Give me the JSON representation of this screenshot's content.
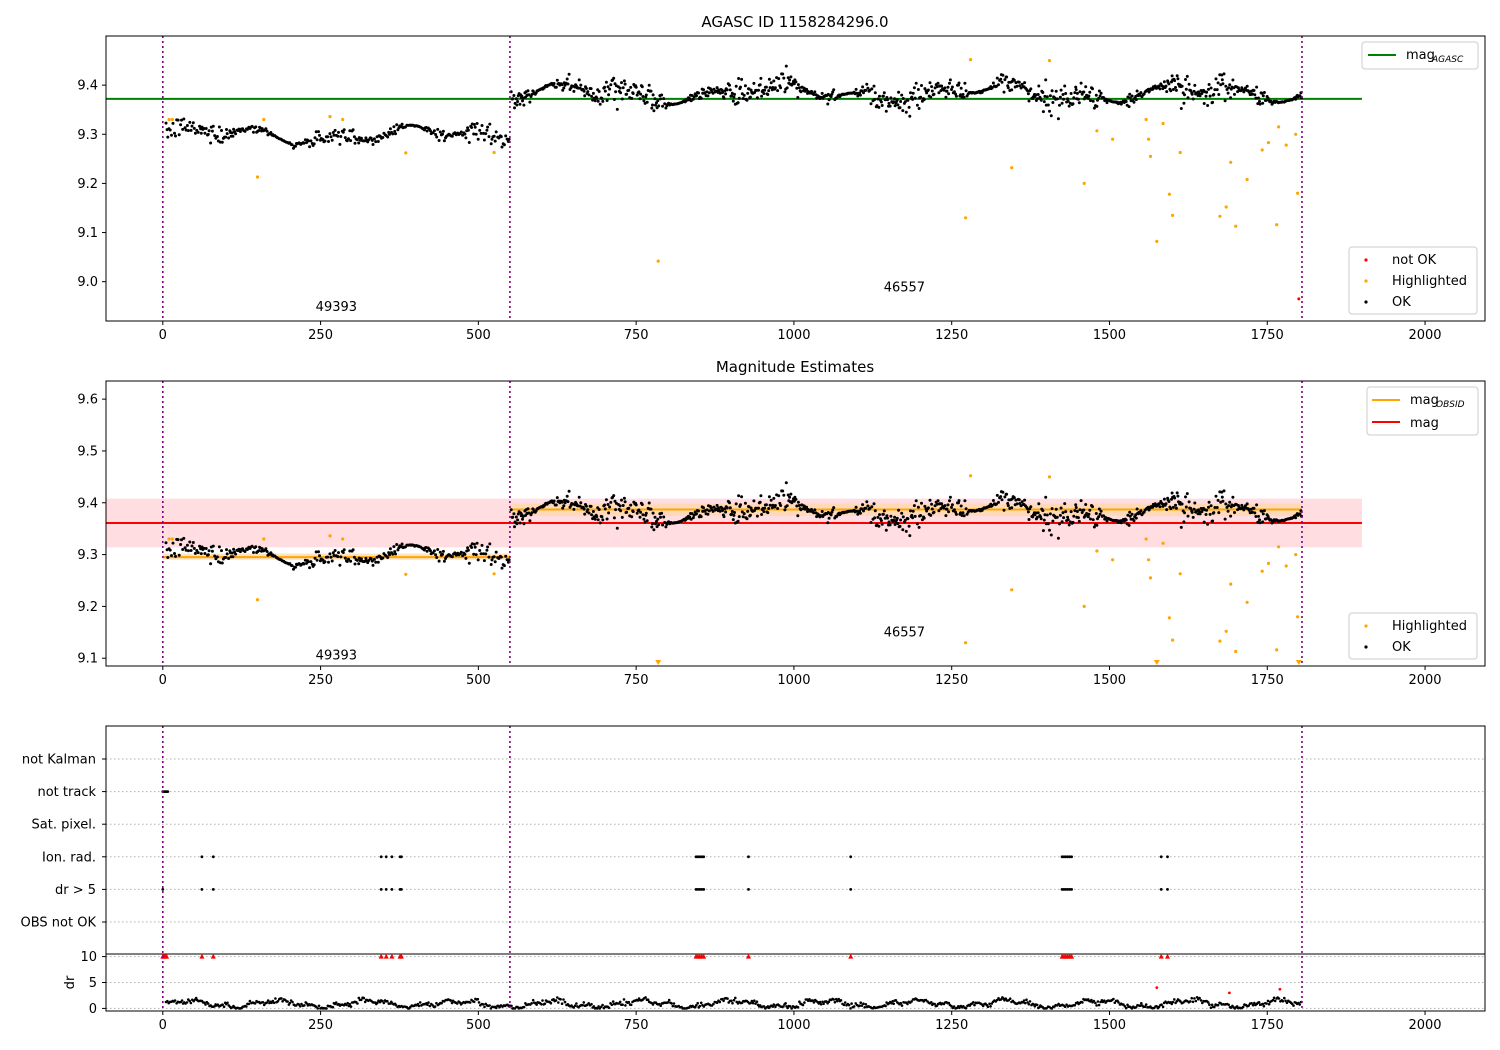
{
  "chart_data": [
    {
      "type": "scatter",
      "title": "AGASC ID 1158284296.0",
      "xlim": [
        -90,
        2095
      ],
      "ylim": [
        8.92,
        9.5
      ],
      "xticks": [
        0,
        250,
        500,
        750,
        1000,
        1250,
        1500,
        1750,
        2000
      ],
      "yticks": [
        9.0,
        9.1,
        9.2,
        9.3,
        9.4
      ],
      "obsid_boundaries": [
        0,
        550,
        1805
      ],
      "obsid_labels": [
        {
          "text": "49393",
          "x": 275,
          "y": 8.94
        },
        {
          "text": "46557",
          "x": 1175,
          "y": 8.98
        }
      ],
      "reference_lines": [
        {
          "name": "mag",
          "subscript": "AGASC",
          "y": 9.372,
          "x_range": [
            -90,
            1900
          ],
          "color": "#008000"
        }
      ],
      "segments": [
        {
          "x_range": [
            5,
            550
          ],
          "base": 9.298,
          "noise": 0.012,
          "spacing": 1.7
        },
        {
          "x_range": [
            552,
            1805
          ],
          "base": 9.383,
          "noise": 0.018,
          "spacing": 1.35
        }
      ],
      "series": [
        {
          "name": "not OK",
          "color": "#ff0000",
          "points": [
            [
              1800,
              8.965
            ]
          ]
        },
        {
          "name": "Highlighted",
          "color": "#ffa500",
          "points": [
            [
              10,
              9.33
            ],
            [
              15,
              9.33
            ],
            [
              150,
              9.213
            ],
            [
              160,
              9.33
            ],
            [
              265,
              9.336
            ],
            [
              285,
              9.33
            ],
            [
              385,
              9.262
            ],
            [
              525,
              9.263
            ],
            [
              785,
              9.042
            ],
            [
              1272,
              9.13
            ],
            [
              1280,
              9.452
            ],
            [
              1345,
              9.232
            ],
            [
              1405,
              9.45
            ],
            [
              1460,
              9.2
            ],
            [
              1480,
              9.307
            ],
            [
              1505,
              9.29
            ],
            [
              1558,
              9.33
            ],
            [
              1562,
              9.29
            ],
            [
              1565,
              9.255
            ],
            [
              1575,
              9.082
            ],
            [
              1585,
              9.322
            ],
            [
              1595,
              9.178
            ],
            [
              1600,
              9.135
            ],
            [
              1612,
              9.263
            ],
            [
              1675,
              9.133
            ],
            [
              1685,
              9.152
            ],
            [
              1692,
              9.243
            ],
            [
              1700,
              9.113
            ],
            [
              1718,
              9.208
            ],
            [
              1742,
              9.268
            ],
            [
              1752,
              9.283
            ],
            [
              1765,
              9.116
            ],
            [
              1768,
              9.315
            ],
            [
              1780,
              9.278
            ],
            [
              1795,
              9.3
            ],
            [
              1798,
              9.18
            ]
          ]
        }
      ],
      "legends": [
        {
          "position": "top-right",
          "entries": [
            {
              "label": "mag",
              "sub": "AGASC",
              "color": "#008000",
              "kind": "line"
            }
          ]
        },
        {
          "position": "bottom-right",
          "entries": [
            {
              "label": "not OK",
              "color": "#ff0000",
              "kind": "dot"
            },
            {
              "label": "Highlighted",
              "color": "#ffa500",
              "kind": "dot"
            },
            {
              "label": "OK",
              "color": "#000000",
              "kind": "dot"
            }
          ]
        }
      ]
    },
    {
      "type": "scatter",
      "title": "Magnitude Estimates",
      "xlim": [
        -90,
        2095
      ],
      "ylim": [
        9.085,
        9.635
      ],
      "xticks": [
        0,
        250,
        500,
        750,
        1000,
        1250,
        1500,
        1750,
        2000
      ],
      "yticks": [
        9.1,
        9.2,
        9.3,
        9.4,
        9.5,
        9.6
      ],
      "obsid_boundaries": [
        0,
        550,
        1805
      ],
      "obsid_labels": [
        {
          "text": "49393",
          "x": 275,
          "y": 9.098
        },
        {
          "text": "46557",
          "x": 1175,
          "y": 9.142
        }
      ],
      "bands": [
        {
          "y_range": [
            9.314,
            9.408
          ],
          "x_range": [
            -90,
            1900
          ],
          "color": "#ffdde0"
        },
        {
          "y_range": [
            9.29,
            9.302
          ],
          "x_range": [
            0,
            550
          ],
          "color": "#ffe2bf"
        },
        {
          "y_range": [
            9.375,
            9.398
          ],
          "x_range": [
            550,
            1805
          ],
          "color": "#ffd9b8"
        }
      ],
      "reference_lines": [
        {
          "name": "mag",
          "y": 9.361,
          "x_range": [
            -90,
            1900
          ],
          "color": "#ff0000"
        },
        {
          "name": "mag",
          "subscript": "OBSID",
          "y": 9.295,
          "x_range": [
            0,
            550
          ],
          "color": "#ffa500"
        },
        {
          "name": "mag",
          "subscript": "OBSID",
          "y": 9.387,
          "x_range": [
            550,
            1805
          ],
          "color": "#ffa500"
        }
      ],
      "segments": [
        {
          "x_range": [
            5,
            550
          ],
          "base": 9.298,
          "noise": 0.012,
          "spacing": 1.7
        },
        {
          "x_range": [
            552,
            1805
          ],
          "base": 9.383,
          "noise": 0.018,
          "spacing": 1.35
        }
      ],
      "series": [
        {
          "name": "Highlighted",
          "color": "#ffa500",
          "points": [
            [
              10,
              9.33
            ],
            [
              15,
              9.33
            ],
            [
              150,
              9.213
            ],
            [
              160,
              9.33
            ],
            [
              265,
              9.336
            ],
            [
              285,
              9.33
            ],
            [
              385,
              9.262
            ],
            [
              525,
              9.263
            ],
            [
              1272,
              9.13
            ],
            [
              1280,
              9.452
            ],
            [
              1345,
              9.232
            ],
            [
              1405,
              9.45
            ],
            [
              1460,
              9.2
            ],
            [
              1480,
              9.307
            ],
            [
              1505,
              9.29
            ],
            [
              1558,
              9.33
            ],
            [
              1562,
              9.29
            ],
            [
              1565,
              9.255
            ],
            [
              1585,
              9.322
            ],
            [
              1595,
              9.178
            ],
            [
              1600,
              9.135
            ],
            [
              1612,
              9.263
            ],
            [
              1675,
              9.133
            ],
            [
              1685,
              9.152
            ],
            [
              1692,
              9.243
            ],
            [
              1700,
              9.113
            ],
            [
              1718,
              9.208
            ],
            [
              1742,
              9.268
            ],
            [
              1752,
              9.283
            ],
            [
              1765,
              9.116
            ],
            [
              1768,
              9.315
            ],
            [
              1780,
              9.278
            ],
            [
              1795,
              9.3
            ],
            [
              1798,
              9.18
            ]
          ]
        },
        {
          "name": "Highlighted (off-scale markers)",
          "color": "#ffa500",
          "points": [
            [
              785,
              9.085
            ],
            [
              1575,
              9.085
            ],
            [
              1800,
              9.085
            ]
          ]
        }
      ],
      "legends": [
        {
          "position": "top-right",
          "entries": [
            {
              "label": "mag",
              "sub": "OBSID",
              "color": "#ffa500",
              "kind": "line"
            },
            {
              "label": "mag",
              "color": "#ff0000",
              "kind": "line"
            }
          ]
        },
        {
          "position": "bottom-right",
          "entries": [
            {
              "label": "Highlighted",
              "color": "#ffa500",
              "kind": "dot"
            },
            {
              "label": "OK",
              "color": "#000000",
              "kind": "dot"
            }
          ]
        }
      ]
    },
    {
      "type": "scatter",
      "title": "",
      "xlim": [
        -90,
        2095
      ],
      "categories": [
        "not Kalman",
        "not track",
        "Sat. pixel.",
        "Ion. rad.",
        "dr > 5",
        "OBS not OK"
      ],
      "obsid_boundaries": [
        0,
        550,
        1805
      ],
      "flags": {
        "not track": [
          0,
          2,
          4,
          6,
          8
        ],
        "Ion. rad.": [
          62,
          80,
          346,
          354,
          363,
          376,
          378,
          845,
          848,
          851,
          854,
          857,
          928,
          1090,
          1425,
          1428,
          1431,
          1434,
          1437,
          1440,
          1582,
          1592
        ],
        "dr > 5": [
          0,
          62,
          80,
          346,
          354,
          363,
          376,
          378,
          845,
          848,
          851,
          854,
          857,
          928,
          1090,
          1425,
          1428,
          1431,
          1434,
          1437,
          1440,
          1582,
          1592
        ]
      },
      "dr_subplot": {
        "ylabel": "dr",
        "ylim": [
          -0.5,
          10.5
        ],
        "yticks": [
          0,
          5,
          10
        ],
        "clip": 10,
        "clipped_x": [
          0,
          2,
          4,
          6,
          62,
          80,
          346,
          354,
          363,
          376,
          378,
          845,
          848,
          851,
          854,
          857,
          928,
          1090,
          1425,
          1428,
          1431,
          1434,
          1437,
          1440,
          1582,
          1592
        ],
        "red_points": [
          [
            1575,
            4.0
          ],
          [
            1690,
            3.0
          ],
          [
            1770,
            3.7
          ]
        ]
      }
    }
  ]
}
